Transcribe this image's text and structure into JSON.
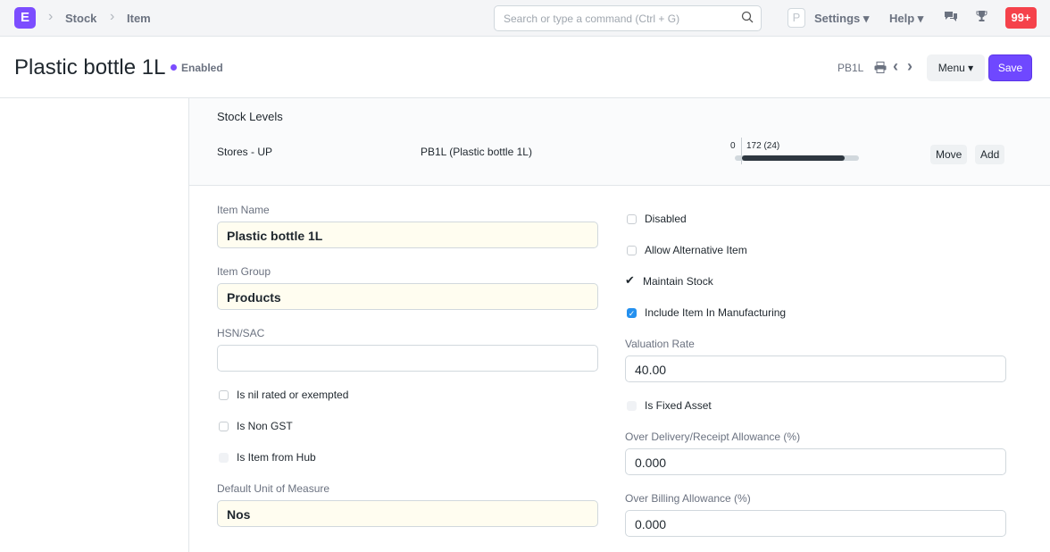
{
  "navbar": {
    "logo": "E",
    "breadcrumbs": [
      "Stock",
      "Item"
    ],
    "search_placeholder": "Search or type a command (Ctrl + G)",
    "avatar": "P",
    "settings": "Settings",
    "help": "Help",
    "notifications": "99+",
    "accent": "#7c4dff"
  },
  "header": {
    "title": "Plastic bottle 1L",
    "status": "Enabled",
    "item_code": "PB1L",
    "menu_label": "Menu",
    "save_label": "Save"
  },
  "stock_levels": {
    "heading": "Stock Levels",
    "warehouse": "Stores - UP",
    "item": "PB1L (Plastic bottle 1L)",
    "min": "0",
    "qty": "172 (24)",
    "fill_fraction": 0.88,
    "move": "Move",
    "add": "Add"
  },
  "form": {
    "item_name": {
      "label": "Item Name",
      "value": "Plastic bottle 1L"
    },
    "item_group": {
      "label": "Item Group",
      "value": "Products"
    },
    "hsn": {
      "label": "HSN/SAC",
      "value": ""
    },
    "nil_rated": {
      "label": "Is nil rated or exempted",
      "checked": false
    },
    "non_gst": {
      "label": "Is Non GST",
      "checked": false
    },
    "from_hub": {
      "label": "Is Item from Hub",
      "checked": false
    },
    "uom": {
      "label": "Default Unit of Measure",
      "value": "Nos"
    },
    "disabled": {
      "label": "Disabled",
      "checked": false
    },
    "alt_item": {
      "label": "Allow Alternative Item",
      "checked": false
    },
    "maintain_stock": {
      "label": "Maintain Stock",
      "checked": true
    },
    "include_mfg": {
      "label": "Include Item In Manufacturing",
      "checked": true
    },
    "valuation_rate": {
      "label": "Valuation Rate",
      "value": "40.00"
    },
    "fixed_asset": {
      "label": "Is Fixed Asset",
      "checked": false
    },
    "over_delivery": {
      "label": "Over Delivery/Receipt Allowance (%)",
      "value": "0.000"
    },
    "over_billing": {
      "label": "Over Billing Allowance (%)",
      "value": "0.000"
    }
  }
}
